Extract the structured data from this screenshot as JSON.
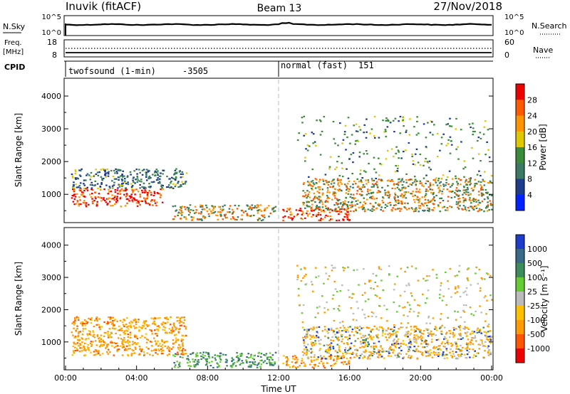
{
  "header": {
    "station": "Inuvik (fitACF)",
    "beam": "Beam 13",
    "date": "27/Nov/2018"
  },
  "status_panels": {
    "nsky_label": "N.Sky",
    "nsky_ticks": [
      "10^5",
      "10^0"
    ],
    "nsearch_label": "N.Search",
    "nsearch_ticks": [
      "10^5",
      "10^0"
    ],
    "freq_label_1": "Freq.",
    "freq_label_2": "[MHz]",
    "freq_ticks": [
      "18",
      "8"
    ],
    "nave_label": "Nave",
    "nave_ticks": [
      "60",
      "0"
    ],
    "cpid_label": "CPID",
    "cpid_segments": [
      {
        "name": "twofsound (1-min)",
        "code": "-3505",
        "start_hour": 0
      },
      {
        "name": "normal (fast)",
        "code": "151",
        "start_hour": 12
      }
    ]
  },
  "chart_data": [
    {
      "type": "heatmap",
      "title": "",
      "parameter": "Power",
      "colorbar_label": "Power [dB]",
      "colorbar_ticks": [
        "28",
        "24",
        "20",
        "16",
        "12",
        "8",
        "4"
      ],
      "colorbar_colors": [
        "#ee0000",
        "#ff5a00",
        "#ff9400",
        "#e0c800",
        "#3a8c3a",
        "#3a7a64",
        "#1e3c8c",
        "#0022ff"
      ],
      "ylabel": "Slant Range [km]",
      "yticks": [
        1000,
        2000,
        3000,
        4000
      ],
      "ylim": [
        180,
        4500
      ],
      "xlim": [
        0,
        24
      ],
      "grid": false,
      "scatter_regions": [
        {
          "t0": 0.3,
          "t1": 5.5,
          "r0": 650,
          "r1": 1200,
          "level": "high"
        },
        {
          "t0": 0.3,
          "t1": 6.8,
          "r0": 1200,
          "r1": 1800,
          "level": "low"
        },
        {
          "t0": 6.0,
          "t1": 11.8,
          "r0": 200,
          "r1": 700,
          "level": "mid"
        },
        {
          "t0": 12.2,
          "t1": 16.0,
          "r0": 200,
          "r1": 600,
          "level": "high"
        },
        {
          "t0": 13.3,
          "t1": 24.0,
          "r0": 500,
          "r1": 1500,
          "level": "mid"
        },
        {
          "t0": 13.0,
          "t1": 24.0,
          "r0": 1500,
          "r1": 3400,
          "level": "sparse"
        }
      ]
    },
    {
      "type": "heatmap",
      "title": "",
      "parameter": "Velocity",
      "colorbar_label": "Velocity [m s^-1]",
      "colorbar_ticks": [
        "1000",
        "500",
        "100",
        "25",
        "-25",
        "-100",
        "-500",
        "-1000"
      ],
      "colorbar_colors": [
        "#1e3ccc",
        "#3a6a8a",
        "#3c8c5c",
        "#66cc33",
        "#bbbbbb",
        "#ffc000",
        "#ff9a00",
        "#ff5500",
        "#ee0000"
      ],
      "ylabel": "Slant Range [km]",
      "yticks": [
        1000,
        2000,
        3000,
        4000
      ],
      "ylim": [
        180,
        4500
      ],
      "xlim": [
        0,
        24
      ],
      "xticks": [
        "00:00",
        "04:00",
        "08:00",
        "12:00",
        "16:00",
        "20:00",
        "00:00"
      ],
      "xlabel": "Time UT",
      "grid": false,
      "scatter_regions": [
        {
          "t0": 0.3,
          "t1": 6.8,
          "r0": 600,
          "r1": 1800,
          "level": "negative"
        },
        {
          "t0": 6.0,
          "t1": 11.8,
          "r0": 200,
          "r1": 700,
          "level": "positive"
        },
        {
          "t0": 12.2,
          "t1": 16.0,
          "r0": 200,
          "r1": 600,
          "level": "negative"
        },
        {
          "t0": 13.3,
          "t1": 24.0,
          "r0": 500,
          "r1": 1500,
          "level": "mixed"
        },
        {
          "t0": 13.0,
          "t1": 24.0,
          "r0": 1500,
          "r1": 3400,
          "level": "sparse"
        }
      ]
    }
  ]
}
